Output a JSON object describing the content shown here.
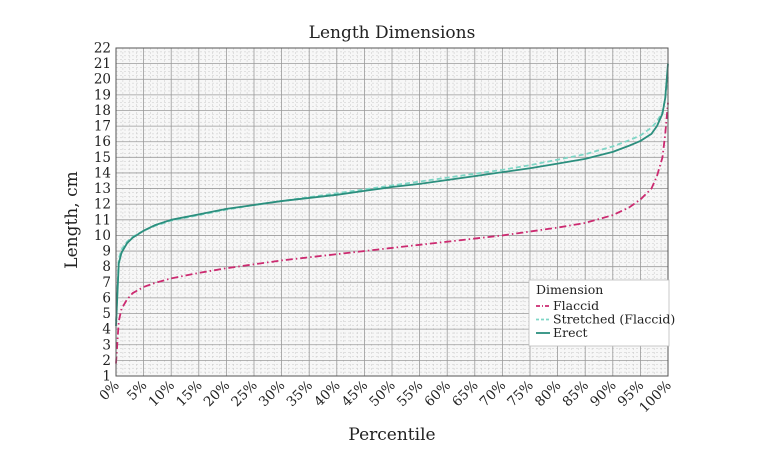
{
  "chart_data": {
    "type": "line",
    "title": "Length Dimensions",
    "xlabel": "Percentile",
    "ylabel": "Length, cm",
    "xlim": [
      0,
      100
    ],
    "ylim": [
      1,
      22
    ],
    "x_ticks": [
      "0%",
      "5%",
      "10%",
      "15%",
      "20%",
      "25%",
      "30%",
      "35%",
      "40%",
      "45%",
      "50%",
      "55%",
      "60%",
      "65%",
      "70%",
      "75%",
      "80%",
      "85%",
      "90%",
      "95%",
      "100%"
    ],
    "y_ticks": [
      "1",
      "2",
      "3",
      "4",
      "5",
      "6",
      "7",
      "8",
      "9",
      "10",
      "11",
      "12",
      "13",
      "14",
      "15",
      "16",
      "17",
      "18",
      "19",
      "20",
      "21",
      "22"
    ],
    "grid": true,
    "legend": {
      "title": "Dimension",
      "position": "bottom-right"
    },
    "x": [
      0,
      0.5,
      1,
      2,
      3,
      5,
      7,
      10,
      15,
      20,
      25,
      30,
      35,
      40,
      45,
      50,
      55,
      60,
      65,
      70,
      75,
      80,
      85,
      90,
      93,
      95,
      97,
      98,
      99,
      99.5,
      100
    ],
    "series": [
      {
        "name": "Flaccid",
        "color": "#cc2a70",
        "dash": "dashdot",
        "values": [
          1.8,
          4.5,
          5.3,
          5.9,
          6.3,
          6.7,
          6.95,
          7.25,
          7.6,
          7.9,
          8.15,
          8.4,
          8.6,
          8.8,
          9.0,
          9.2,
          9.4,
          9.6,
          9.8,
          10.0,
          10.25,
          10.5,
          10.8,
          11.3,
          11.8,
          12.3,
          13.0,
          13.8,
          15.0,
          16.5,
          18.5
        ]
      },
      {
        "name": "Stretched (Flaccid)",
        "color": "#7fd6c6",
        "dash": "dashed",
        "values": [
          4.5,
          8.5,
          9.1,
          9.6,
          9.9,
          10.3,
          10.6,
          10.95,
          11.3,
          11.65,
          11.95,
          12.2,
          12.45,
          12.7,
          12.95,
          13.2,
          13.45,
          13.7,
          13.95,
          14.2,
          14.5,
          14.85,
          15.2,
          15.7,
          16.1,
          16.4,
          16.9,
          17.3,
          17.9,
          18.8,
          20.2
        ]
      },
      {
        "name": "Erect",
        "color": "#2b8f7e",
        "dash": "solid",
        "values": [
          4.2,
          8.2,
          8.9,
          9.5,
          9.85,
          10.3,
          10.65,
          11.0,
          11.35,
          11.7,
          11.95,
          12.2,
          12.4,
          12.6,
          12.85,
          13.1,
          13.3,
          13.55,
          13.8,
          14.05,
          14.3,
          14.6,
          14.9,
          15.35,
          15.75,
          16.05,
          16.5,
          17.0,
          17.8,
          18.8,
          21.0
        ]
      }
    ]
  }
}
